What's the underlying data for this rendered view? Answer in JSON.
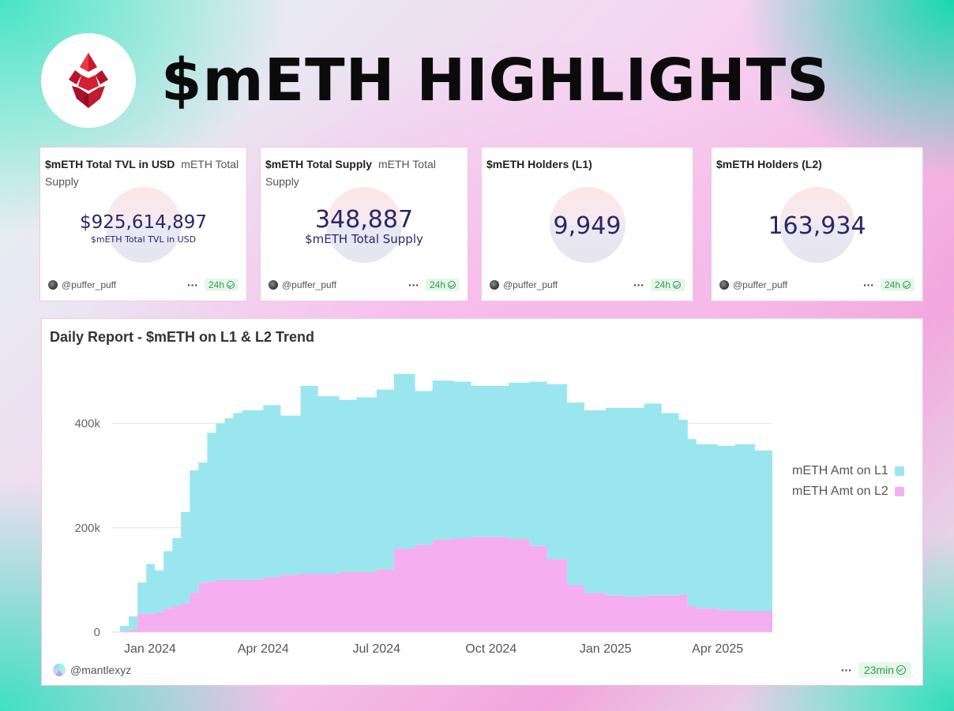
{
  "headline": "$mETH HIGHLIGHTS",
  "colors": {
    "l1": "#9ae6ef",
    "l2": "#f5aef0",
    "value_text": "#2b2668",
    "badge_green": "#2f9b53"
  },
  "cards": [
    {
      "title": "$mETH Total TVL in USD",
      "subtitle": "mETH Total Supply",
      "value": "$925,614,897",
      "value_label": "$mETH Total TVL in USD",
      "author": "@puffer_puff",
      "badge": "24h"
    },
    {
      "title": "$mETH Total Supply",
      "subtitle": "mETH Total Supply",
      "value": "348,887",
      "value_label": "$mETH Total Supply",
      "author": "@puffer_puff",
      "badge": "24h"
    },
    {
      "title": "$mETH Holders (L1)",
      "subtitle": "",
      "value": "9,949",
      "value_label": "",
      "author": "@puffer_puff",
      "badge": "24h"
    },
    {
      "title": "$mETH Holders (L2)",
      "subtitle": "",
      "value": "163,934",
      "value_label": "",
      "author": "@puffer_puff",
      "badge": "24h"
    }
  ],
  "chart_card": {
    "author": "@mantlexyz",
    "badge": "23min"
  },
  "chart_data": {
    "type": "area",
    "title": "Daily Report - $mETH on L1 & L2 Trend",
    "xlabel": "",
    "ylabel": "",
    "stacked": true,
    "grid": true,
    "legend_position": "right",
    "x_tick_labels": [
      "Jan 2024",
      "Apr 2024",
      "Jul 2024",
      "Oct 2024",
      "Jan 2025",
      "Apr 2025"
    ],
    "y_tick_values": [
      0,
      200000,
      400000
    ],
    "y_tick_labels": [
      "0",
      "200k",
      "400k"
    ],
    "ylim": [
      0,
      540000
    ],
    "xlim": [
      "2023-12-01",
      "2025-05-15"
    ],
    "x": [
      "2023-12-01",
      "2023-12-08",
      "2023-12-15",
      "2023-12-22",
      "2023-12-29",
      "2024-01-05",
      "2024-01-12",
      "2024-01-19",
      "2024-01-26",
      "2024-02-02",
      "2024-02-09",
      "2024-02-16",
      "2024-02-23",
      "2024-03-01",
      "2024-03-08",
      "2024-03-15",
      "2024-03-22",
      "2024-04-01",
      "2024-04-15",
      "2024-05-01",
      "2024-05-15",
      "2024-06-01",
      "2024-06-15",
      "2024-07-01",
      "2024-07-15",
      "2024-08-01",
      "2024-08-15",
      "2024-09-01",
      "2024-09-15",
      "2024-10-01",
      "2024-10-15",
      "2024-11-01",
      "2024-11-15",
      "2024-12-01",
      "2024-12-15",
      "2025-01-01",
      "2025-01-15",
      "2025-02-01",
      "2025-02-15",
      "2025-03-01",
      "2025-03-08",
      "2025-03-15",
      "2025-04-01",
      "2025-04-15",
      "2025-05-01",
      "2025-05-15"
    ],
    "series": [
      {
        "name": "mETH Amt on L1",
        "values": [
          0,
          10000,
          25000,
          60000,
          95000,
          80000,
          110000,
          130000,
          175000,
          235000,
          230000,
          285000,
          300000,
          310000,
          320000,
          325000,
          325000,
          330000,
          305000,
          360000,
          340000,
          330000,
          335000,
          345000,
          335000,
          295000,
          305000,
          300000,
          290000,
          290000,
          300000,
          315000,
          335000,
          350000,
          350000,
          360000,
          362000,
          368000,
          350000,
          335000,
          320000,
          315000,
          315000,
          320000,
          308000,
          305000
        ]
      },
      {
        "name": "mETH Amt on L2",
        "values": [
          0,
          2000,
          5000,
          35000,
          35000,
          38000,
          45000,
          50000,
          55000,
          75000,
          95000,
          97000,
          100000,
          100000,
          100000,
          100000,
          100000,
          105000,
          110000,
          112000,
          112000,
          115000,
          115000,
          120000,
          160000,
          167000,
          177000,
          180000,
          182000,
          182000,
          178000,
          165000,
          140000,
          90000,
          75000,
          70000,
          68000,
          70000,
          70000,
          72000,
          50000,
          45000,
          42000,
          40000,
          40000,
          38000
        ]
      }
    ]
  }
}
